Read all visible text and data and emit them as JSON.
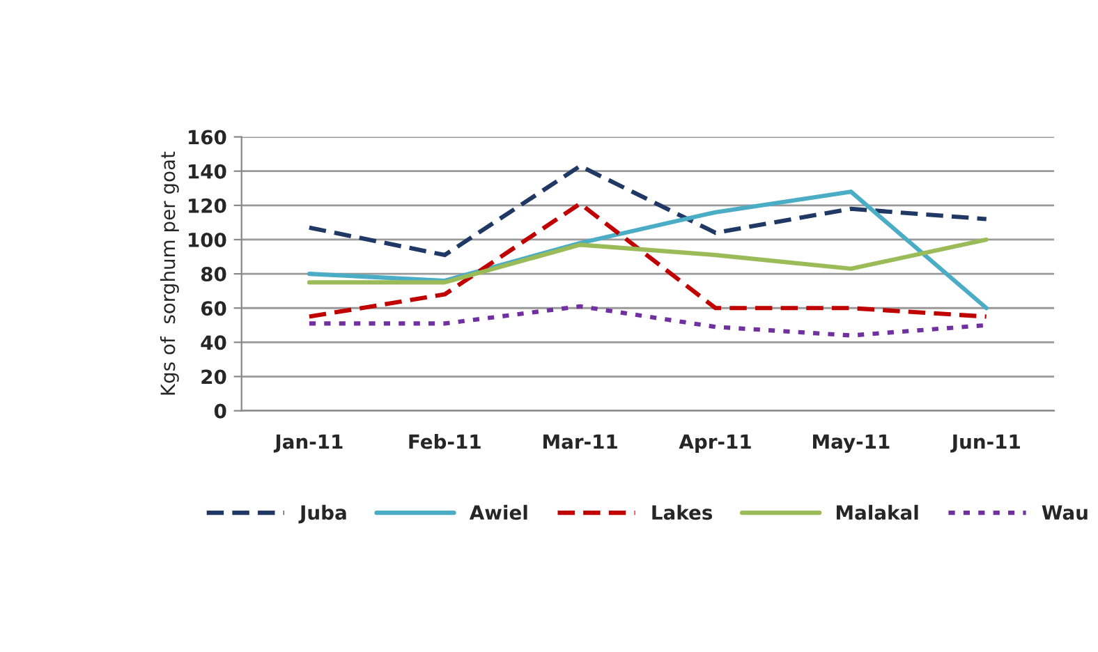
{
  "chart_data": {
    "type": "line",
    "ylabel": "Kgs of  sorghum per goat",
    "categories": [
      "Jan-11",
      "Feb-11",
      "Mar-11",
      "Apr-11",
      "May-11",
      "Jun-11"
    ],
    "series": [
      {
        "name": "Juba",
        "color": "#1f3864",
        "line_style": "dashed",
        "values": [
          107,
          91,
          143,
          104,
          118,
          112
        ]
      },
      {
        "name": "Awiel",
        "color": "#4bacc6",
        "line_style": "solid",
        "values": [
          80,
          76,
          98,
          116,
          128,
          60
        ]
      },
      {
        "name": "Lakes",
        "color": "#c00000",
        "line_style": "dashed",
        "values": [
          55,
          68,
          121,
          60,
          60,
          55
        ]
      },
      {
        "name": "Malakal",
        "color": "#9bbb59",
        "line_style": "solid",
        "values": [
          75,
          75,
          97,
          91,
          83,
          100
        ]
      },
      {
        "name": "Wau",
        "color": "#7030a0",
        "line_style": "dotted",
        "values": [
          51,
          51,
          61,
          49,
          44,
          50
        ]
      }
    ],
    "ylim": [
      0,
      160
    ],
    "yticks": [
      0,
      20,
      40,
      60,
      80,
      100,
      120,
      140,
      160
    ],
    "grid": "y",
    "legend": "bottom",
    "marker": "none"
  }
}
